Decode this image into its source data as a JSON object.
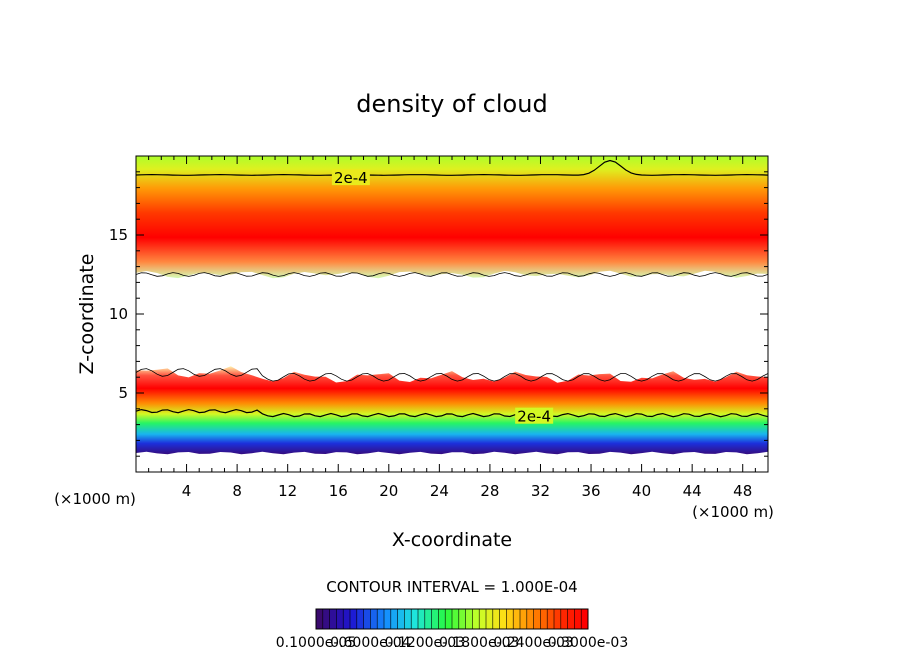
{
  "chart_data": {
    "type": "heatmap",
    "title": "density of cloud",
    "xlabel": "X-coordinate",
    "ylabel": "Z-coordinate",
    "x_unit": "(×1000 m)",
    "z_unit": "(×1000 m)",
    "xlim": [
      0,
      50
    ],
    "ylim": [
      0,
      20
    ],
    "x_ticks": [
      4,
      8,
      12,
      16,
      20,
      24,
      28,
      32,
      36,
      40,
      44,
      48
    ],
    "y_ticks": [
      5,
      10,
      15
    ],
    "contour_interval_text": "CONTOUR INTERVAL = 1.000E-04",
    "contour_labels": [
      {
        "text": "2e-4",
        "x": 17,
        "z": 18.6
      },
      {
        "text": "2e-4",
        "x": 31.5,
        "z": 3.5
      }
    ],
    "upper_layer": {
      "z_bottom": 12.5,
      "z_top": 20,
      "peak_z": 15,
      "upper_contour_z": 18.8
    },
    "lower_layer": {
      "z_bottom": 1.2,
      "z_top": 6,
      "peak_z": 4.8,
      "contour_z": 3.6
    },
    "colorbar": {
      "tick_labels": [
        "0.1000e-05",
        "0.6000e-04",
        "0.1200e-03",
        "0.1800e-03",
        "0.2400e-03",
        "0.3000e-03"
      ]
    },
    "colors": {
      "low": "#3a0a6e",
      "mid": "#33ff33",
      "high": "#ff0000",
      "top": "#99ff00",
      "empty": "#ffffff"
    },
    "grid": false
  }
}
